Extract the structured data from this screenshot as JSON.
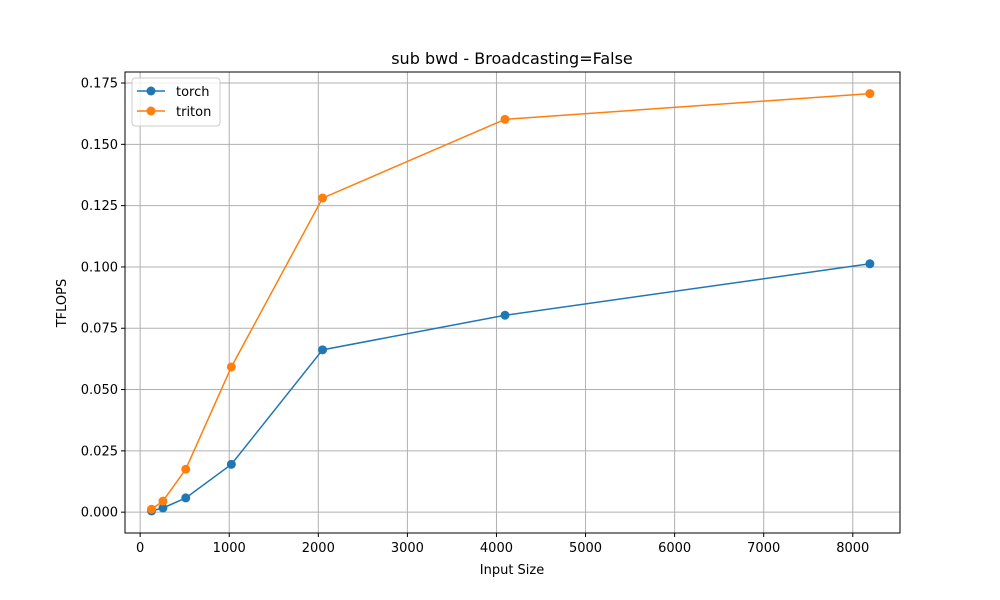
{
  "chart_data": {
    "type": "line",
    "title": "sub bwd - Broadcasting=False",
    "xlabel": "Input Size",
    "ylabel": "TFLOPS",
    "xlim": [
      -170,
      8530
    ],
    "ylim": [
      -0.0085,
      0.1795
    ],
    "xticks": [
      0,
      1000,
      2000,
      3000,
      4000,
      5000,
      6000,
      7000,
      8000
    ],
    "xtick_labels": [
      "0",
      "1000",
      "2000",
      "3000",
      "4000",
      "5000",
      "6000",
      "7000",
      "8000"
    ],
    "yticks": [
      0.0,
      0.025,
      0.05,
      0.075,
      0.1,
      0.125,
      0.15,
      0.175
    ],
    "ytick_labels": [
      "0.000",
      "0.025",
      "0.050",
      "0.075",
      "0.100",
      "0.125",
      "0.150",
      "0.175"
    ],
    "grid": true,
    "legend_position": "top-left",
    "x": [
      128,
      256,
      512,
      1024,
      2048,
      4096,
      8192
    ],
    "series": [
      {
        "name": "torch",
        "color": "#1f77b4",
        "marker": "circle",
        "values": [
          0.0005,
          0.0017,
          0.0058,
          0.0195,
          0.0662,
          0.0803,
          0.1013
        ]
      },
      {
        "name": "triton",
        "color": "#ff7f0e",
        "marker": "circle",
        "values": [
          0.0012,
          0.0045,
          0.0175,
          0.0592,
          0.1281,
          0.1602,
          0.1707
        ]
      }
    ]
  }
}
